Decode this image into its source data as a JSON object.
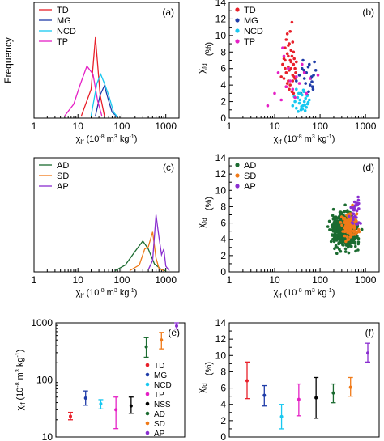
{
  "chart_data": [
    {
      "panel": "(a)",
      "type": "line",
      "xscale": "log",
      "xlim": [
        1,
        2000
      ],
      "xticks": [
        1,
        10,
        100,
        1000
      ],
      "xticklabels": [
        "1",
        "10",
        "100",
        "1000"
      ],
      "ylim": [
        0,
        1
      ],
      "yticklabels": [],
      "xlabel": "χlf (10-8 m3 kg-1)",
      "ylabel": "Frequency",
      "legend": "top-left",
      "series": [
        {
          "name": "TD",
          "color": "#e8202a",
          "x": [
            12,
            20,
            25,
            32,
            40
          ],
          "y": [
            0.02,
            0.25,
            0.7,
            0.2,
            0.02
          ]
        },
        {
          "name": "MG",
          "color": "#1f3ca8",
          "x": [
            25,
            32,
            40,
            50,
            60,
            80
          ],
          "y": [
            0.02,
            0.2,
            0.28,
            0.15,
            0.05,
            0.01
          ]
        },
        {
          "name": "NCD",
          "color": "#17c8f0",
          "x": [
            20,
            27,
            33,
            40,
            50,
            65,
            80
          ],
          "y": [
            0.02,
            0.3,
            0.38,
            0.3,
            0.2,
            0.05,
            0.01
          ]
        },
        {
          "name": "TP",
          "color": "#e520c5",
          "x": [
            5,
            8,
            11,
            16,
            22,
            28,
            35
          ],
          "y": [
            0.02,
            0.12,
            0.28,
            0.45,
            0.38,
            0.15,
            0.02
          ]
        }
      ]
    },
    {
      "panel": "(b)",
      "type": "scatter",
      "xscale": "log",
      "xlim": [
        1,
        2000
      ],
      "xticks": [
        1,
        10,
        100,
        1000
      ],
      "xticklabels": [
        "1",
        "10",
        "100",
        "1000"
      ],
      "ylim": [
        0,
        14
      ],
      "yticks": [
        0,
        2,
        4,
        6,
        8,
        10,
        12,
        14
      ],
      "yticklabels": [
        "0",
        "2",
        "4",
        "6",
        "8",
        "10",
        "12",
        "14"
      ],
      "xlabel": "χlf (10-8 m3 kg-1)",
      "ylabel": "χfd (%)",
      "legend": "top-left",
      "series": [
        {
          "name": "TD",
          "color": "#e8202a",
          "x": [
            14,
            15,
            16,
            16,
            17,
            17,
            18,
            18,
            19,
            19,
            20,
            20,
            20,
            21,
            21,
            22,
            22,
            23,
            23,
            24,
            24,
            25,
            25,
            26,
            26,
            27,
            28,
            28,
            29,
            30,
            18,
            19,
            21,
            22,
            24,
            25,
            26,
            27,
            17,
            20,
            23
          ],
          "y": [
            5.0,
            6.5,
            7.2,
            4.8,
            8.5,
            6.0,
            9.5,
            5.5,
            10.2,
            7.8,
            8.8,
            6.2,
            4.5,
            9.0,
            5.8,
            10.5,
            7.0,
            8.2,
            6.8,
            11.6,
            7.5,
            9.2,
            5.2,
            8.0,
            6.5,
            7.2,
            6.0,
            4.8,
            5.5,
            6.8,
            3.8,
            4.2,
            3.5,
            4.0,
            3.2,
            4.5,
            3.0,
            5.0,
            7.0,
            7.5,
            6.0
          ]
        },
        {
          "name": "MG",
          "color": "#1f3ca8",
          "x": [
            30,
            35,
            40,
            45,
            50,
            55,
            60,
            65,
            70,
            75,
            80,
            38,
            42,
            48,
            52,
            58,
            62,
            68,
            72,
            44,
            56,
            66
          ],
          "y": [
            4.5,
            5.2,
            6.0,
            4.8,
            5.5,
            6.2,
            4.0,
            5.0,
            3.5,
            6.8,
            5.8,
            3.0,
            7.0,
            4.2,
            2.8,
            6.5,
            4.8,
            3.8,
            5.2,
            5.8,
            3.2,
            4.4
          ]
        },
        {
          "name": "NCD",
          "color": "#17c8f0",
          "x": [
            25,
            28,
            30,
            32,
            34,
            35,
            36,
            38,
            40,
            42,
            44,
            45,
            46,
            48,
            50,
            52,
            55,
            58,
            30,
            33,
            37,
            41,
            43,
            47,
            53,
            27,
            39
          ],
          "y": [
            1.5,
            2.0,
            1.2,
            2.5,
            3.0,
            1.8,
            2.2,
            1.0,
            2.8,
            1.5,
            3.2,
            2.0,
            1.6,
            2.4,
            1.3,
            2.7,
            1.9,
            2.2,
            3.5,
            0.8,
            3.0,
            1.1,
            3.4,
            0.9,
            1.7,
            2.6,
            1.4
          ]
        },
        {
          "name": "TP",
          "color": "#e520c5",
          "x": [
            7,
            10,
            12,
            14,
            16,
            18,
            20,
            22,
            25,
            30,
            35,
            40,
            50,
            60,
            90,
            15,
            28,
            45
          ],
          "y": [
            1.5,
            3.0,
            5.5,
            2.2,
            7.5,
            3.8,
            6.0,
            4.5,
            3.5,
            5.0,
            4.2,
            6.5,
            3.0,
            4.8,
            5.2,
            8.5,
            2.5,
            5.5
          ]
        }
      ]
    },
    {
      "panel": "(c)",
      "type": "line",
      "xscale": "log",
      "xlim": [
        1,
        2000
      ],
      "xticks": [
        1,
        10,
        100,
        1000
      ],
      "xticklabels": [
        "1",
        "10",
        "100",
        "1000"
      ],
      "ylim": [
        0,
        1
      ],
      "yticklabels": [],
      "xlabel": "χlf (10-8 m3 kg-1)",
      "ylabel": "",
      "legend": "top-left",
      "series": [
        {
          "name": "AD",
          "color": "#1b6b30",
          "x": [
            70,
            120,
            200,
            300,
            400,
            550,
            800,
            1000
          ],
          "y": [
            0.01,
            0.06,
            0.18,
            0.27,
            0.2,
            0.07,
            0.02,
            0.01
          ]
        },
        {
          "name": "SD",
          "color": "#f07a18",
          "x": [
            150,
            250,
            330,
            400,
            500,
            600,
            700,
            900
          ],
          "y": [
            0.01,
            0.06,
            0.2,
            0.22,
            0.35,
            0.12,
            0.03,
            0.01
          ]
        },
        {
          "name": "AP",
          "color": "#8a2ed0",
          "x": [
            400,
            500,
            600,
            700,
            800,
            900,
            1000,
            1200
          ],
          "y": [
            0.02,
            0.1,
            0.5,
            0.3,
            0.15,
            0.2,
            0.05,
            0.01
          ]
        }
      ]
    },
    {
      "panel": "(d)",
      "type": "scatter",
      "xscale": "log",
      "xlim": [
        1,
        2000
      ],
      "xticks": [
        1,
        10,
        100,
        1000
      ],
      "xticklabels": [
        "1",
        "10",
        "100",
        "1000"
      ],
      "ylim": [
        0,
        14
      ],
      "yticks": [
        0,
        2,
        4,
        6,
        8,
        10,
        12,
        14
      ],
      "yticklabels": [
        "0",
        "2",
        "4",
        "6",
        "8",
        "10",
        "12",
        "14"
      ],
      "xlabel": "χlf (10-8 m3 kg-1)",
      "ylabel": "χfd (%)",
      "legend": "top-left",
      "series": [
        {
          "name": "AD",
          "color": "#1b6b30",
          "cloud": {
            "logx_center": 2.55,
            "logx_spread": 0.18,
            "y_center": 5.0,
            "y_spread": 1.4,
            "count": 600,
            "ymin": 0.5,
            "ymax": 11
          }
        },
        {
          "name": "SD",
          "color": "#f07a18",
          "cloud": {
            "logx_center": 2.65,
            "logx_spread": 0.12,
            "y_center": 5.8,
            "y_spread": 1.2,
            "count": 120,
            "ymin": 2,
            "ymax": 10
          }
        },
        {
          "name": "AP",
          "color": "#8a2ed0",
          "cloud": {
            "logx_center": 2.78,
            "logx_spread": 0.08,
            "y_center": 7.5,
            "y_spread": 1.5,
            "count": 30,
            "ymin": 4,
            "ymax": 10.5
          }
        }
      ]
    },
    {
      "panel": "(e)",
      "type": "errorbar",
      "yscale": "log",
      "ylim": [
        10,
        1000
      ],
      "yticks": [
        10,
        100,
        1000
      ],
      "yticklabels": [
        "10",
        "100",
        "1000"
      ],
      "ylabel": "χlf (10-8 m3 kg-1)",
      "legend": "right",
      "series": [
        {
          "name": "TD",
          "color": "#e8202a",
          "mean": 23,
          "low": 20,
          "high": 27
        },
        {
          "name": "MG",
          "color": "#1f3ca8",
          "mean": 48,
          "low": 36,
          "high": 64
        },
        {
          "name": "NCD",
          "color": "#17c8f0",
          "mean": 38,
          "low": 31,
          "high": 45
        },
        {
          "name": "TP",
          "color": "#e520c5",
          "mean": 30,
          "low": 14,
          "high": 50
        },
        {
          "name": "NSS",
          "color": "#000000",
          "mean": 35,
          "low": 26,
          "high": 50
        },
        {
          "name": "AD",
          "color": "#1b6b30",
          "mean": 380,
          "low": 250,
          "high": 550
        },
        {
          "name": "SD",
          "color": "#f07a18",
          "mean": 500,
          "low": 350,
          "high": 680
        },
        {
          "name": "AP",
          "color": "#8a2ed0",
          "mean": 880,
          "low": 780,
          "high": 1000
        }
      ]
    },
    {
      "panel": "(f)",
      "type": "errorbar",
      "ylim": [
        0,
        14
      ],
      "yticks": [
        0,
        2,
        4,
        6,
        8,
        10,
        12,
        14
      ],
      "yticklabels": [
        "0",
        "2",
        "4",
        "6",
        "8",
        "10",
        "12",
        "14"
      ],
      "ylabel": "χfd (%)",
      "series": [
        {
          "name": "TD",
          "color": "#e8202a",
          "mean": 6.9,
          "low": 4.7,
          "high": 9.2
        },
        {
          "name": "MG",
          "color": "#1f3ca8",
          "mean": 5.1,
          "low": 3.8,
          "high": 6.3
        },
        {
          "name": "NCD",
          "color": "#17c8f0",
          "mean": 2.5,
          "low": 1.0,
          "high": 4.0
        },
        {
          "name": "TP",
          "color": "#e520c5",
          "mean": 4.6,
          "low": 2.6,
          "high": 6.5
        },
        {
          "name": "NSS",
          "color": "#000000",
          "mean": 4.8,
          "low": 2.3,
          "high": 7.3
        },
        {
          "name": "AD",
          "color": "#1b6b30",
          "mean": 5.4,
          "low": 4.2,
          "high": 6.5
        },
        {
          "name": "SD",
          "color": "#f07a18",
          "mean": 6.1,
          "low": 5.0,
          "high": 7.3
        },
        {
          "name": "AP",
          "color": "#8a2ed0",
          "mean": 10.3,
          "low": 9.2,
          "high": 11.5
        }
      ]
    }
  ]
}
